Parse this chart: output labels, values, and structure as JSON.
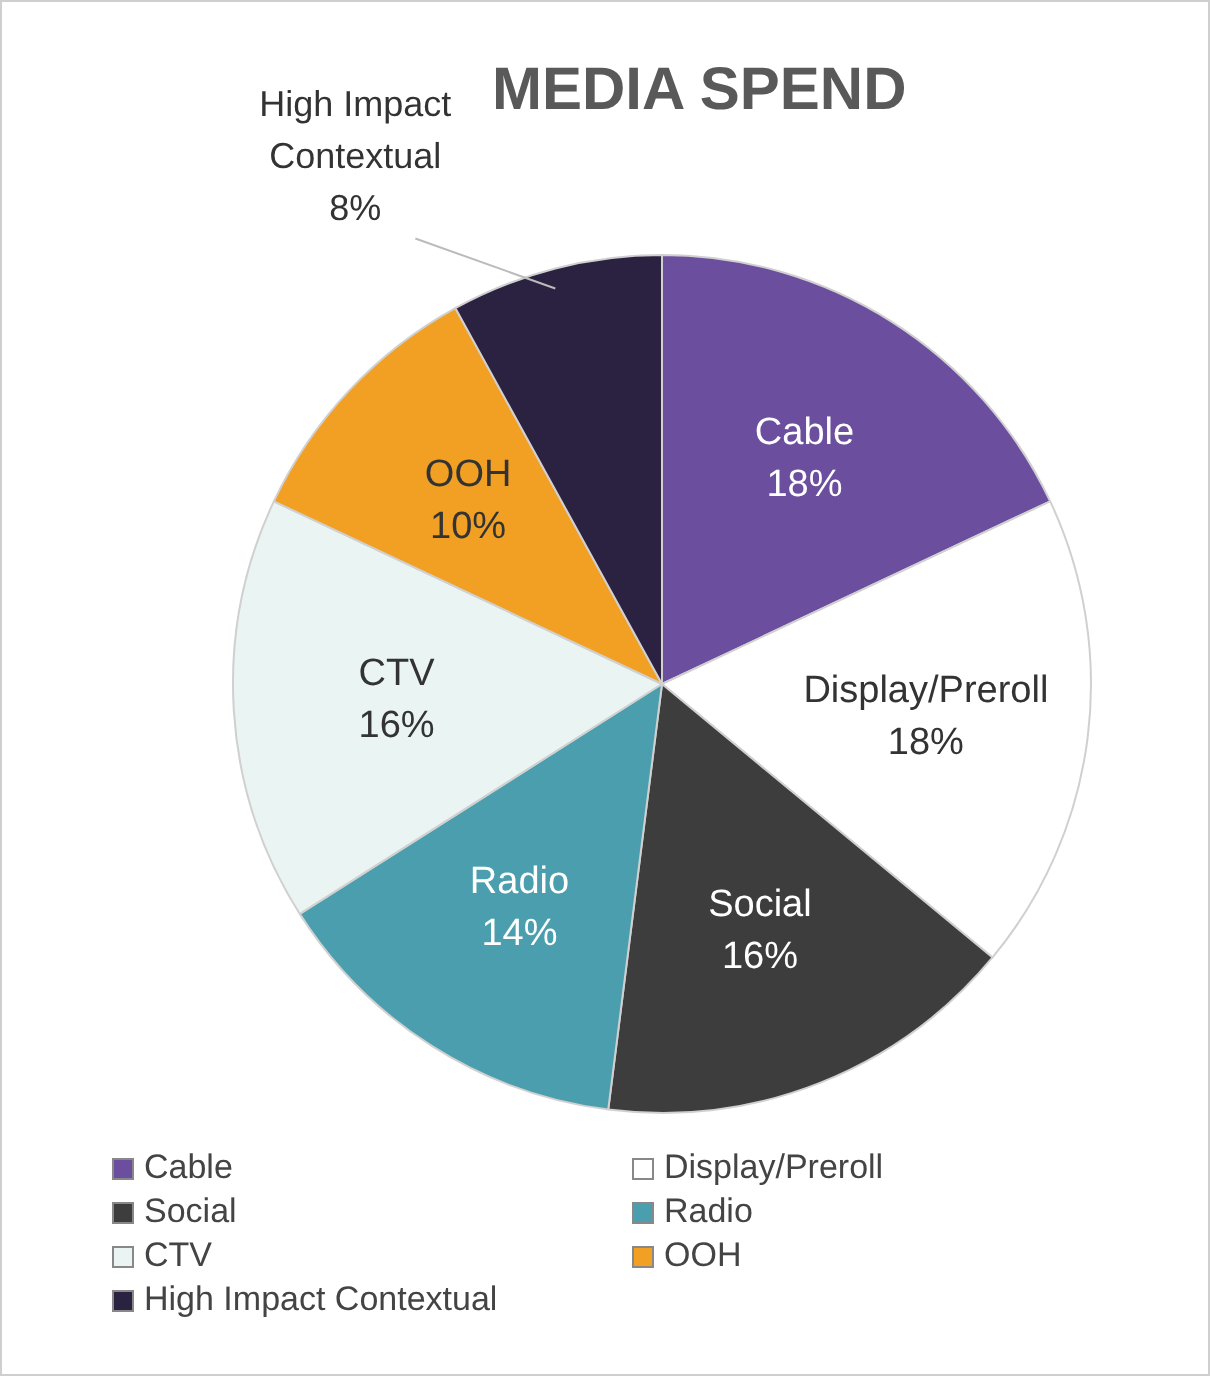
{
  "chart_data": {
    "type": "pie",
    "title": "MEDIA SPEND",
    "categories": [
      "Cable",
      "Display/Preroll",
      "Social",
      "Radio",
      "CTV",
      "OOH",
      "High Impact Contextual"
    ],
    "values": [
      18,
      18,
      16,
      14,
      16,
      10,
      8
    ],
    "value_labels": [
      "18%",
      "18%",
      "16%",
      "14%",
      "16%",
      "10%",
      "8%"
    ],
    "colors": [
      "#6b4e9e",
      "#ffffff",
      "#3d3d3d",
      "#4a9ead",
      "#e9f4f3",
      "#f2a023",
      "#2b2140"
    ],
    "legend": "bottom"
  }
}
